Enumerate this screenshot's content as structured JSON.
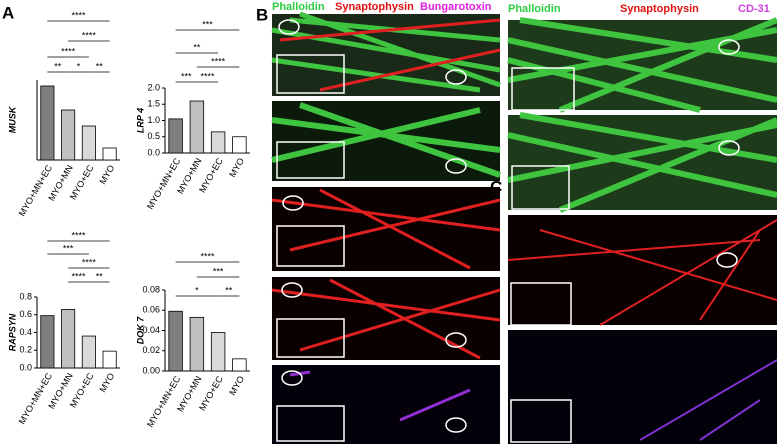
{
  "panels": {
    "a": "A",
    "b": "B",
    "c": "C"
  },
  "panel_b_labels": [
    "Phalloidin",
    "Synaptophysin",
    "Bungarotoxin"
  ],
  "panel_c_labels": [
    "Phalloidin",
    "Synaptophysin",
    "CD-31"
  ],
  "chart_data": [
    {
      "type": "bar",
      "y_label": "MUSK",
      "categories": [
        "MYO+MN+EC",
        "MYO+MN",
        "MYO+EC",
        "MYO"
      ],
      "values": [
        3.7,
        2.5,
        1.7,
        0.6
      ],
      "colors": [
        "#7f7f7f",
        "#bfbfbf",
        "#d9d9d9",
        "#ffffff"
      ],
      "ylim": [
        0,
        4
      ],
      "annotations": [
        "**",
        "*",
        "**",
        "****",
        "****",
        "****"
      ]
    },
    {
      "type": "bar",
      "y_label": "LRP 4",
      "categories": [
        "MYO+MN+EC",
        "MYO+MN",
        "MYO+EC",
        "MYO"
      ],
      "values": [
        1.05,
        1.6,
        0.65,
        0.5
      ],
      "colors": [
        "#7f7f7f",
        "#bfbfbf",
        "#d9d9d9",
        "#ffffff"
      ],
      "ylim": [
        0,
        2
      ],
      "yticks": [
        {
          "value": 0,
          "label": "0.0"
        },
        0.5,
        {
          "value": 1,
          "label": "1.0"
        },
        1.5,
        {
          "value": 2,
          "label": "2.0"
        }
      ],
      "annotations": [
        "***",
        "**",
        "****",
        "***",
        "****"
      ]
    },
    {
      "type": "bar",
      "y_label": "RAPSYN",
      "categories": [
        "MYO+MN+EC",
        "MYO+MN",
        "MYO+EC",
        "MYO"
      ],
      "values": [
        0.59,
        0.66,
        0.36,
        0.19
      ],
      "colors": [
        "#7f7f7f",
        "#bfbfbf",
        "#d9d9d9",
        "#ffffff"
      ],
      "ylim": [
        0,
        0.8
      ],
      "yticks": [
        {
          "value": 0,
          "label": "0.0"
        },
        0.2,
        0.4,
        0.6,
        0.8
      ],
      "annotations": [
        "****",
        "***",
        "****",
        "****",
        "**"
      ]
    },
    {
      "type": "bar",
      "y_label": "DOK 7",
      "categories": [
        "MYO+MN+EC",
        "MYO+MN",
        "MYO+EC",
        "MYO"
      ],
      "values": [
        0.059,
        0.053,
        0.038,
        0.012
      ],
      "colors": [
        "#7f7f7f",
        "#bfbfbf",
        "#d9d9d9",
        "#ffffff"
      ],
      "ylim": [
        0,
        0.08
      ],
      "yticks": [
        {
          "value": 0,
          "label": "0.00"
        },
        {
          "value": 0.02,
          "label": "0.02"
        },
        {
          "value": 0.04,
          "label": "0.04"
        },
        {
          "value": 0.06,
          "label": "0.06"
        },
        {
          "value": 0.08,
          "label": "0.08"
        }
      ],
      "annotations": [
        "****",
        "***",
        "*",
        "**"
      ]
    }
  ]
}
